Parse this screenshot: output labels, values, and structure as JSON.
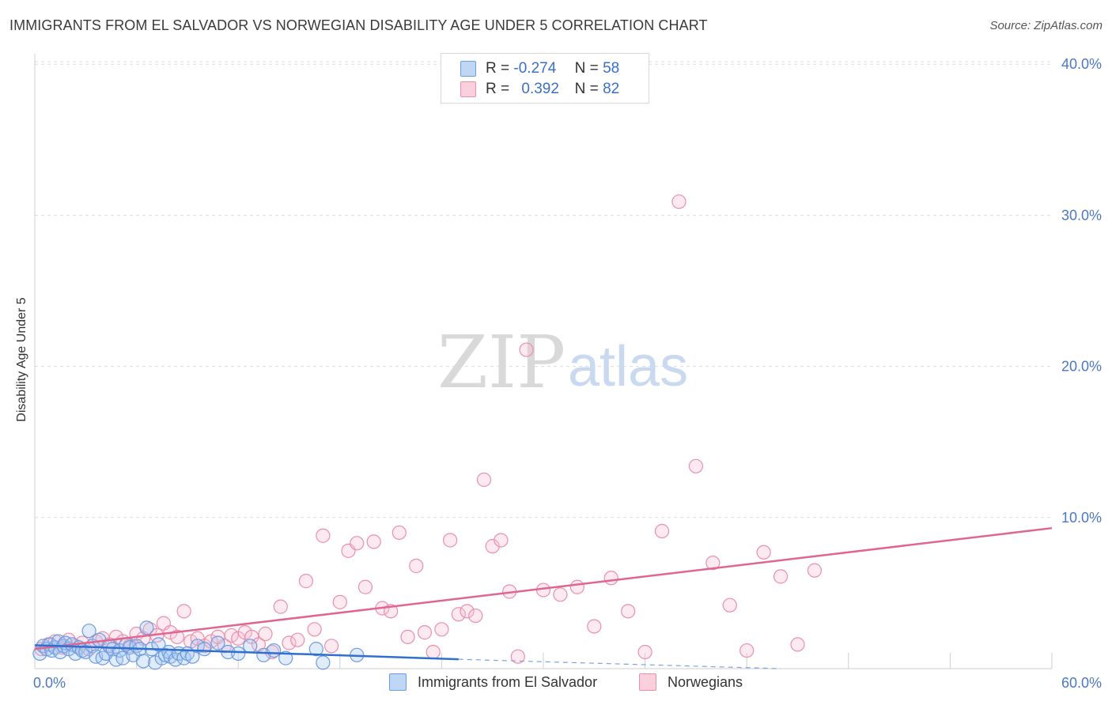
{
  "title": "IMMIGRANTS FROM EL SALVADOR VS NORWEGIAN DISABILITY AGE UNDER 5 CORRELATION CHART",
  "source": "Source: ZipAtlas.com",
  "watermark": {
    "zip": "ZIP",
    "atlas": "atlas"
  },
  "legend": {
    "rows": [
      {
        "r_label": "R =",
        "r_value": "-0.274",
        "n_label": "N =",
        "n_value": "58",
        "color": "#a9c8f0",
        "border": "#6d9be0"
      },
      {
        "r_label": "R =",
        "r_value": "0.392",
        "n_label": "N =",
        "n_value": "82",
        "color": "#f7c4d3",
        "border": "#ea8fab"
      }
    ]
  },
  "bottom_legend": [
    {
      "label": "Immigrants from El Salvador",
      "color": "#bfd6f5",
      "border": "#6d9be0"
    },
    {
      "label": "Norwegians",
      "color": "#f9d0dc",
      "border": "#ea8fab"
    }
  ],
  "chart_data": {
    "type": "scatter",
    "title": "IMMIGRANTS FROM EL SALVADOR VS NORWEGIAN DISABILITY AGE UNDER 5 CORRELATION CHART",
    "xlabel": "",
    "ylabel": "Disability Age Under 5",
    "xlim": [
      0,
      60
    ],
    "ylim": [
      0,
      41
    ],
    "x_ticks": [
      {
        "value": 0,
        "label": "0.0%"
      },
      {
        "value": 60,
        "label": "60.0%"
      }
    ],
    "y_ticks": [
      {
        "value": 10,
        "label": "10.0%"
      },
      {
        "value": 20,
        "label": "20.0%"
      },
      {
        "value": 30,
        "label": "30.0%"
      },
      {
        "value": 40,
        "label": "40.0%"
      }
    ],
    "series": [
      {
        "name": "Immigrants from El Salvador",
        "color": "#6d9be0",
        "fill": "rgba(169,200,240,0.35)",
        "points": [
          [
            0.3,
            1.0
          ],
          [
            0.5,
            1.5
          ],
          [
            0.7,
            1.3
          ],
          [
            0.9,
            1.6
          ],
          [
            1.0,
            1.2
          ],
          [
            1.2,
            1.4
          ],
          [
            1.4,
            1.8
          ],
          [
            1.5,
            1.1
          ],
          [
            1.7,
            1.5
          ],
          [
            1.8,
            1.7
          ],
          [
            2.0,
            1.3
          ],
          [
            2.2,
            1.6
          ],
          [
            2.4,
            1.0
          ],
          [
            2.6,
            1.4
          ],
          [
            2.8,
            1.2
          ],
          [
            3.0,
            1.1
          ],
          [
            3.2,
            2.5
          ],
          [
            3.4,
            1.5
          ],
          [
            3.6,
            0.8
          ],
          [
            3.8,
            1.9
          ],
          [
            4.0,
            0.7
          ],
          [
            4.2,
            1.0
          ],
          [
            4.4,
            1.5
          ],
          [
            4.6,
            1.3
          ],
          [
            4.8,
            0.6
          ],
          [
            5.0,
            1.2
          ],
          [
            5.2,
            0.7
          ],
          [
            5.4,
            1.6
          ],
          [
            5.6,
            1.4
          ],
          [
            5.8,
            0.9
          ],
          [
            6.0,
            1.5
          ],
          [
            6.2,
            1.3
          ],
          [
            6.4,
            0.5
          ],
          [
            6.6,
            2.7
          ],
          [
            6.9,
            1.3
          ],
          [
            7.1,
            0.4
          ],
          [
            7.3,
            1.6
          ],
          [
            7.5,
            0.7
          ],
          [
            7.7,
            0.9
          ],
          [
            7.9,
            1.1
          ],
          [
            8.0,
            0.8
          ],
          [
            8.3,
            0.6
          ],
          [
            8.5,
            1.0
          ],
          [
            8.8,
            0.7
          ],
          [
            9.0,
            1.0
          ],
          [
            9.3,
            0.8
          ],
          [
            9.6,
            1.5
          ],
          [
            10.0,
            1.3
          ],
          [
            10.8,
            1.7
          ],
          [
            11.4,
            1.1
          ],
          [
            12.0,
            1.0
          ],
          [
            12.7,
            1.5
          ],
          [
            13.5,
            0.9
          ],
          [
            14.1,
            1.2
          ],
          [
            14.8,
            0.7
          ],
          [
            16.6,
            1.3
          ],
          [
            17.0,
            0.4
          ],
          [
            19.0,
            0.9
          ]
        ],
        "trend": {
          "x1": 0,
          "y1": 1.55,
          "x2": 25,
          "y2": 0.62,
          "dash_to_x": 44,
          "dash_to_y": 0.0
        }
      },
      {
        "name": "Norwegians",
        "color": "#ea8fab",
        "fill": "rgba(247,196,211,0.35)",
        "points": [
          [
            0.4,
            1.3
          ],
          [
            0.8,
            1.6
          ],
          [
            1.2,
            1.8
          ],
          [
            1.6,
            1.4
          ],
          [
            2.0,
            1.9
          ],
          [
            2.4,
            1.5
          ],
          [
            2.8,
            1.7
          ],
          [
            3.2,
            1.3
          ],
          [
            3.6,
            1.8
          ],
          [
            4.0,
            2.0
          ],
          [
            4.4,
            1.6
          ],
          [
            4.8,
            2.1
          ],
          [
            5.2,
            1.8
          ],
          [
            5.6,
            1.5
          ],
          [
            6.0,
            2.3
          ],
          [
            6.4,
            2.0
          ],
          [
            6.8,
            2.6
          ],
          [
            7.2,
            2.2
          ],
          [
            7.6,
            3.0
          ],
          [
            8.0,
            2.4
          ],
          [
            8.4,
            2.1
          ],
          [
            8.8,
            3.8
          ],
          [
            9.2,
            1.8
          ],
          [
            9.6,
            2.0
          ],
          [
            10.0,
            1.5
          ],
          [
            10.4,
            1.8
          ],
          [
            10.8,
            2.1
          ],
          [
            11.2,
            1.5
          ],
          [
            11.6,
            2.2
          ],
          [
            12.0,
            2.0
          ],
          [
            12.4,
            2.4
          ],
          [
            12.8,
            2.1
          ],
          [
            13.2,
            1.6
          ],
          [
            13.6,
            2.3
          ],
          [
            14.0,
            1.1
          ],
          [
            14.5,
            4.1
          ],
          [
            15.0,
            1.7
          ],
          [
            15.5,
            1.9
          ],
          [
            16.0,
            5.8
          ],
          [
            16.5,
            2.6
          ],
          [
            17.0,
            8.8
          ],
          [
            17.5,
            1.5
          ],
          [
            18.0,
            4.4
          ],
          [
            18.5,
            7.8
          ],
          [
            19.0,
            8.3
          ],
          [
            19.5,
            5.4
          ],
          [
            20.0,
            8.4
          ],
          [
            20.5,
            4.0
          ],
          [
            21.0,
            3.8
          ],
          [
            21.5,
            9.0
          ],
          [
            22.0,
            2.1
          ],
          [
            22.5,
            6.8
          ],
          [
            23.0,
            2.4
          ],
          [
            23.5,
            1.1
          ],
          [
            24.0,
            2.6
          ],
          [
            24.5,
            8.5
          ],
          [
            25.0,
            3.6
          ],
          [
            25.5,
            3.8
          ],
          [
            26.0,
            3.5
          ],
          [
            26.5,
            12.5
          ],
          [
            27.0,
            8.1
          ],
          [
            27.5,
            8.5
          ],
          [
            28.0,
            5.1
          ],
          [
            28.5,
            0.8
          ],
          [
            29.0,
            21.1
          ],
          [
            30.0,
            5.2
          ],
          [
            31.0,
            4.9
          ],
          [
            32.0,
            5.4
          ],
          [
            33.0,
            2.8
          ],
          [
            34.0,
            6.0
          ],
          [
            35.0,
            3.8
          ],
          [
            36.0,
            1.1
          ],
          [
            37.0,
            9.1
          ],
          [
            38.0,
            30.9
          ],
          [
            39.0,
            13.4
          ],
          [
            40.0,
            7.0
          ],
          [
            41.0,
            4.2
          ],
          [
            42.0,
            1.2
          ],
          [
            43.0,
            7.7
          ],
          [
            44.0,
            6.1
          ],
          [
            45.0,
            1.6
          ],
          [
            46.0,
            6.5
          ]
        ],
        "trend": {
          "x1": 0,
          "y1": 1.3,
          "x2": 60,
          "y2": 9.3
        }
      }
    ]
  }
}
